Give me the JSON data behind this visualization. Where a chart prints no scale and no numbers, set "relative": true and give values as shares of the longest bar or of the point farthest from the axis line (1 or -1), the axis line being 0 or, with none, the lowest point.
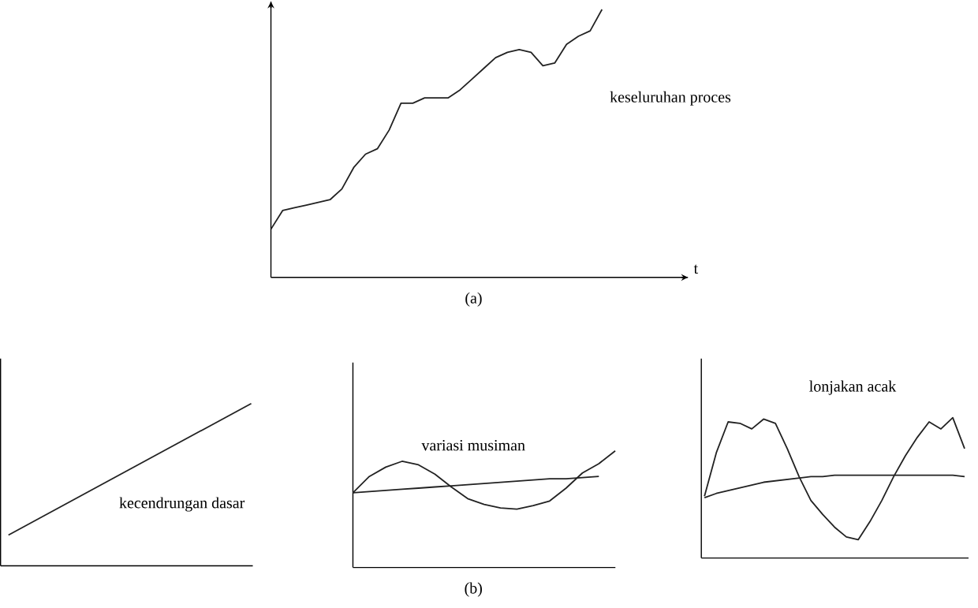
{
  "chart_data": [
    {
      "type": "line",
      "relative": true,
      "xlabel": "t",
      "annotations": [
        "(a)"
      ],
      "categories": [
        null,
        null,
        null,
        null,
        null,
        null,
        null,
        null,
        null,
        null,
        null,
        null,
        null,
        null,
        null,
        null,
        null,
        null,
        null,
        null,
        null,
        null,
        null,
        null,
        null,
        null,
        null,
        null,
        null
      ],
      "series": [
        {
          "name": "keseluruhan proces",
          "color": "#222222",
          "values": [
            0.18,
            0.25,
            0.26,
            0.27,
            0.28,
            0.29,
            0.33,
            0.41,
            0.46,
            0.48,
            0.55,
            0.65,
            0.65,
            0.67,
            0.67,
            0.67,
            0.7,
            0.74,
            0.78,
            0.82,
            0.84,
            0.85,
            0.84,
            0.79,
            0.8,
            0.87,
            0.9,
            0.92,
            1.0
          ]
        }
      ]
    },
    {
      "type": "line",
      "relative": true,
      "categories": [
        null,
        null
      ],
      "series": [
        {
          "name": "kecendrungan dasar",
          "color": "#222222",
          "values": [
            0.19,
            1.0
          ]
        }
      ]
    },
    {
      "type": "line",
      "relative": true,
      "annotations": [
        "(b)"
      ],
      "categories": [
        null,
        null,
        null,
        null,
        null,
        null,
        null,
        null,
        null,
        null,
        null,
        null,
        null,
        null,
        null,
        null,
        null
      ],
      "series": [
        {
          "color": "#222222",
          "values": [
            0.64,
            0.65,
            0.66,
            0.67,
            0.68,
            0.69,
            0.7,
            0.71,
            0.72,
            0.73,
            0.74,
            0.75,
            0.76,
            0.76,
            0.77,
            0.78,
            null
          ]
        },
        {
          "name": "variasi musiman",
          "color": "#222222",
          "values": [
            0.64,
            0.78,
            0.86,
            0.91,
            0.88,
            0.8,
            0.69,
            0.59,
            0.54,
            0.51,
            0.5,
            0.53,
            0.57,
            0.68,
            0.81,
            0.89,
            1.0
          ]
        }
      ]
    },
    {
      "type": "line",
      "relative": true,
      "categories": [
        null,
        null,
        null,
        null,
        null,
        null,
        null,
        null,
        null,
        null,
        null,
        null,
        null,
        null,
        null,
        null,
        null,
        null,
        null,
        null,
        null,
        null,
        null
      ],
      "series": [
        {
          "color": "#222222",
          "values": [
            0.43,
            0.46,
            0.48,
            0.5,
            0.52,
            0.54,
            0.55,
            0.56,
            0.57,
            0.58,
            0.58,
            0.59,
            0.59,
            0.59,
            0.59,
            0.59,
            0.59,
            0.59,
            0.59,
            0.59,
            0.59,
            0.59,
            0.58
          ]
        },
        {
          "name": "lonjakan acak",
          "color": "#222222",
          "values": [
            0.44,
            0.75,
            0.97,
            0.96,
            0.92,
            0.99,
            0.96,
            0.78,
            0.58,
            0.41,
            0.31,
            0.22,
            0.15,
            0.13,
            0.26,
            0.41,
            0.58,
            0.73,
            0.86,
            0.97,
            0.92,
            1.0,
            0.78
          ]
        }
      ]
    }
  ]
}
